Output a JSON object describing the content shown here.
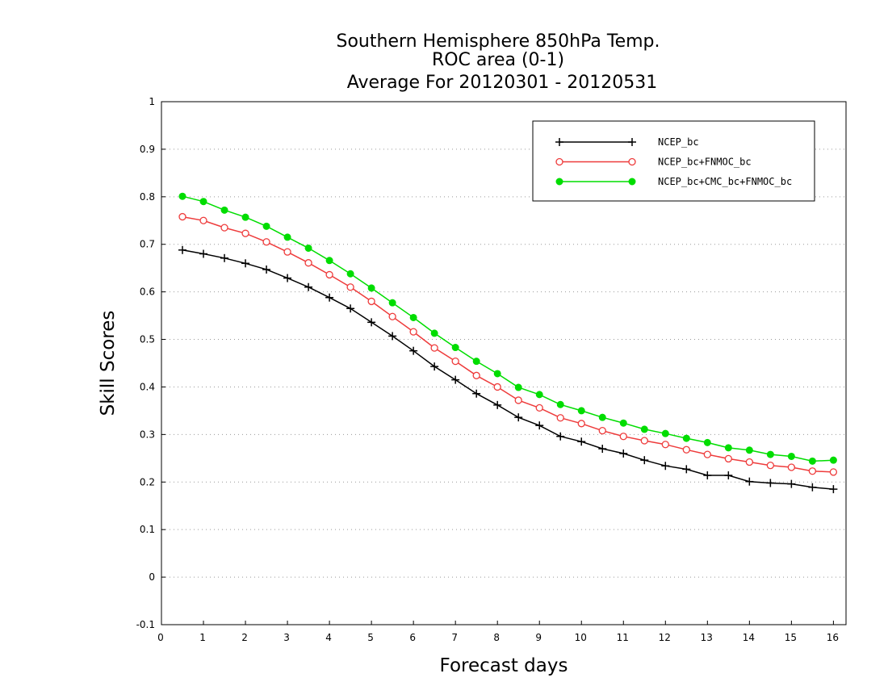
{
  "chart_data": {
    "type": "line",
    "title_lines": [
      "Southern Hemisphere 850hPa Temp.",
      "ROC area (0-1)",
      "Average For 20120301 - 20120531"
    ],
    "xlabel": "Forecast days",
    "ylabel": "Skill Scores",
    "xlim": [
      0,
      16.3
    ],
    "ylim": [
      -0.1,
      1
    ],
    "xticks": [
      0,
      1,
      2,
      3,
      4,
      5,
      6,
      7,
      8,
      9,
      10,
      11,
      12,
      13,
      14,
      15,
      16
    ],
    "yticks": [
      -0.1,
      0,
      0.1,
      0.2,
      0.3,
      0.4,
      0.5,
      0.6,
      0.7,
      0.8,
      0.9,
      1
    ],
    "ytick_labels": [
      "-0.1",
      "0",
      "0.1",
      "0.2",
      "0.3",
      "0.4",
      "0.5",
      "0.6",
      "0.7",
      "0.8",
      "0.9",
      "1"
    ],
    "grid": "horizontal dotted",
    "legend_position": "top-right",
    "x": [
      0.5,
      1,
      1.5,
      2,
      2.5,
      3,
      3.5,
      4,
      4.5,
      5,
      5.5,
      6,
      6.5,
      7,
      7.5,
      8,
      8.5,
      9,
      9.5,
      10,
      10.5,
      11,
      11.5,
      12,
      12.5,
      13,
      13.5,
      14,
      14.5,
      15,
      15.5,
      16
    ],
    "series": [
      {
        "name": "NCEP_bc",
        "color": "#000000",
        "marker": "plus",
        "values": [
          0.688,
          0.68,
          0.671,
          0.66,
          0.647,
          0.629,
          0.61,
          0.588,
          0.565,
          0.536,
          0.507,
          0.476,
          0.443,
          0.415,
          0.386,
          0.362,
          0.336,
          0.319,
          0.296,
          0.285,
          0.27,
          0.26,
          0.246,
          0.234,
          0.227,
          0.214,
          0.214,
          0.201,
          0.198,
          0.196,
          0.189,
          0.185
        ]
      },
      {
        "name": "NCEP_bc+FNMOC_bc",
        "color": "#ee3b3b",
        "marker": "open-circle",
        "values": [
          0.758,
          0.75,
          0.735,
          0.723,
          0.705,
          0.684,
          0.661,
          0.636,
          0.61,
          0.58,
          0.548,
          0.516,
          0.482,
          0.454,
          0.424,
          0.4,
          0.372,
          0.356,
          0.335,
          0.323,
          0.308,
          0.296,
          0.287,
          0.279,
          0.268,
          0.258,
          0.249,
          0.242,
          0.235,
          0.231,
          0.223,
          0.221
        ]
      },
      {
        "name": "NCEP_bc+CMC_bc+FNMOC_bc",
        "color": "#00dd00",
        "marker": "filled-circle",
        "values": [
          0.801,
          0.79,
          0.772,
          0.757,
          0.738,
          0.715,
          0.692,
          0.666,
          0.638,
          0.608,
          0.577,
          0.546,
          0.513,
          0.483,
          0.454,
          0.428,
          0.399,
          0.384,
          0.363,
          0.35,
          0.336,
          0.324,
          0.311,
          0.302,
          0.292,
          0.283,
          0.272,
          0.267,
          0.258,
          0.254,
          0.244,
          0.246
        ]
      }
    ]
  }
}
